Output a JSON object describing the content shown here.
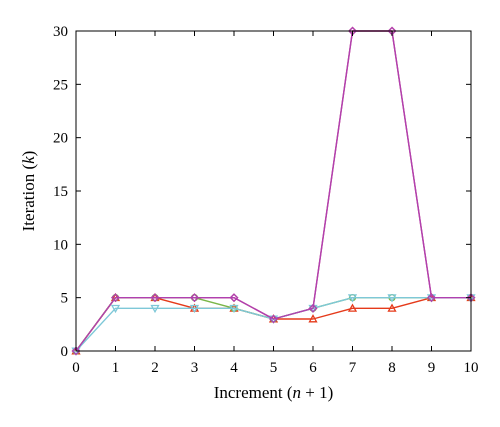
{
  "chart_data": {
    "type": "line",
    "xlabel": "Increment (n + 1)",
    "ylabel": "Iteration (k)",
    "xlim": [
      0,
      10
    ],
    "ylim": [
      0,
      30
    ],
    "xticks": [
      0,
      1,
      2,
      3,
      4,
      5,
      6,
      7,
      8,
      9,
      10
    ],
    "yticks": [
      0,
      5,
      10,
      15,
      20,
      25,
      30
    ],
    "grid": false,
    "legend": "none",
    "x": [
      0,
      1,
      2,
      3,
      4,
      5,
      6,
      7,
      8,
      9,
      10
    ],
    "series": [
      {
        "color": "#cc3366",
        "marker": "diamond",
        "values": [
          0,
          5,
          5,
          5,
          5,
          3,
          4,
          30,
          30,
          5,
          5
        ]
      },
      {
        "color": "#e53a1a",
        "marker": "triangle-up",
        "values": [
          0,
          5,
          5,
          4,
          4,
          3,
          3,
          4,
          4,
          5,
          5
        ]
      },
      {
        "color": "#7ab648",
        "marker": "circle",
        "values": [
          0,
          5,
          5,
          5,
          4,
          3,
          4,
          5,
          5,
          5,
          5
        ]
      },
      {
        "color": "#7ec8d8",
        "marker": "triangle-down",
        "values": [
          0,
          4,
          4,
          4,
          4,
          3,
          4,
          5,
          5,
          5,
          5
        ]
      },
      {
        "color": "#b040b0",
        "marker": "diamond",
        "values": [
          0,
          5,
          5,
          5,
          5,
          3,
          4,
          30,
          30,
          5,
          5
        ]
      }
    ]
  }
}
